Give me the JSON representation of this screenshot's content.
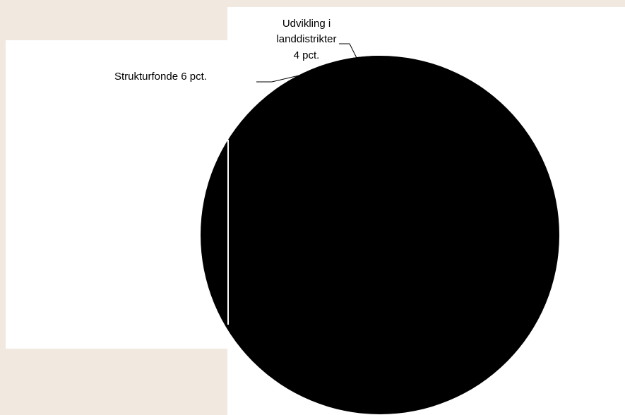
{
  "chart_data": {
    "type": "pie",
    "title": "",
    "slices": [
      {
        "label_lines": [
          "Udvikling i",
          "landdistrikter",
          "4 pct."
        ],
        "value": 4
      },
      {
        "label_lines": [
          "Strukturfonde 6 pct."
        ],
        "value": 6
      }
    ],
    "colors": {
      "slice_fill": "#000000",
      "background": "#f1e9df",
      "panel": "#ffffff"
    }
  }
}
